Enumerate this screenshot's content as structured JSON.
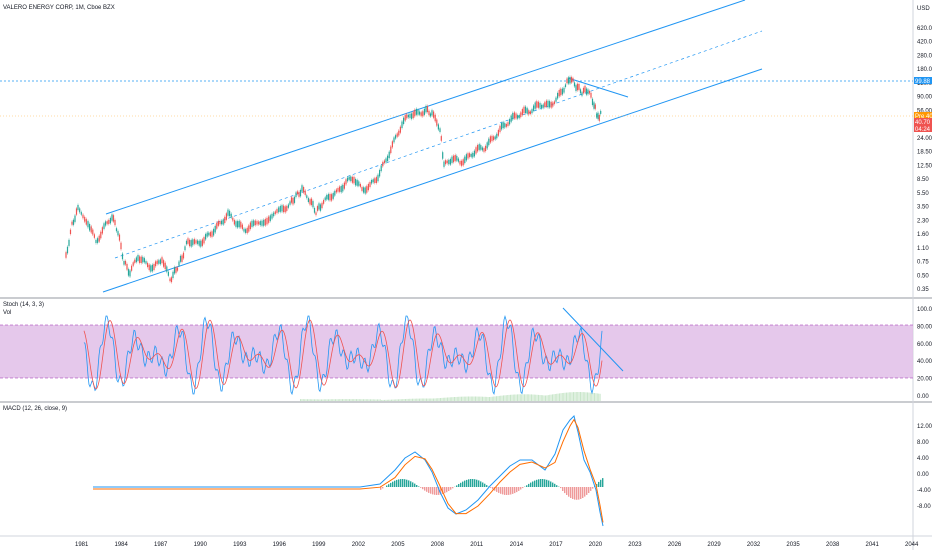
{
  "header": {
    "title": "VALERO ENERGY CORP, 1M, Cboe BZX"
  },
  "price_axis": {
    "currency": "USD",
    "ticks": [
      "620.00",
      "420.00",
      "280.00",
      "180.00",
      "120.00",
      "90.00",
      "56.00",
      "36.00",
      "24.00",
      "18.50",
      "12.50",
      "8.50",
      "5.50",
      "3.50",
      "2.30",
      "1.60",
      "1.10",
      "0.75",
      "0.50",
      "0.35"
    ],
    "tags": [
      {
        "text": "99.88",
        "color": "#2196f3"
      },
      {
        "text": "Pre 40.75",
        "color": "#ff9800"
      },
      {
        "text": "40.70",
        "color": "#ef5350"
      },
      {
        "text": "04:24",
        "color": "#ef5350"
      }
    ]
  },
  "stoch": {
    "label_main": "Stoch (14, 3, 3)",
    "label_vol": "Vol",
    "ticks": [
      "100.00",
      "80.00",
      "60.00",
      "40.00",
      "20.00",
      "0.00"
    ],
    "band_color": "#e1bee7"
  },
  "macd": {
    "label": "MACD (12, 26, close, 9)",
    "ticks": [
      "12.00",
      "8.00",
      "4.00",
      "0.00",
      "-4.00",
      "-8.00"
    ]
  },
  "time_axis": {
    "ticks": [
      "1981",
      "1984",
      "1987",
      "1990",
      "1993",
      "1996",
      "1999",
      "2002",
      "2005",
      "2008",
      "2011",
      "2014",
      "2017",
      "2020",
      "2023",
      "2026",
      "2029",
      "2032",
      "2035",
      "2038",
      "2041",
      "2044"
    ]
  },
  "colors": {
    "up": "#26a69a",
    "down": "#ef5350",
    "channel": "#2196f3",
    "macd": "#2196f3",
    "signal": "#ff6d00"
  }
}
